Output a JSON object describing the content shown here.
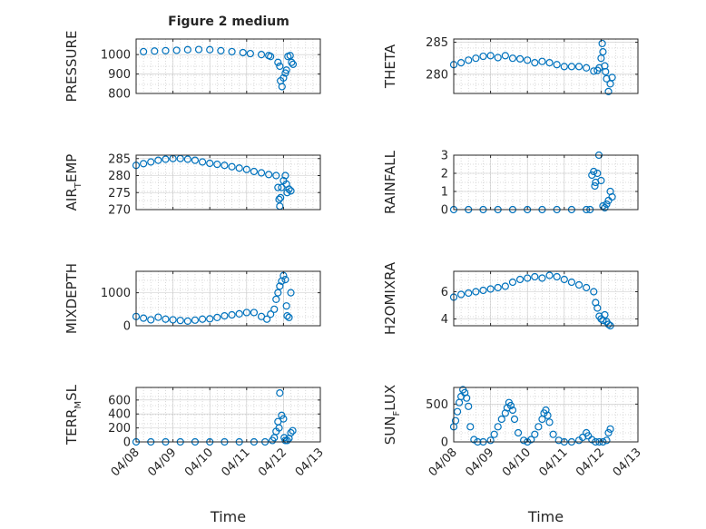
{
  "figure_title": "Figure 2 medium",
  "colors": {
    "marker": "#0072bd",
    "axis": "#262626",
    "grid": "#d0d0d0"
  },
  "x_tick_labels": [
    "04/08",
    "04/09",
    "04/10",
    "04/11",
    "04/12",
    "04/13"
  ],
  "chart_data": [
    {
      "type": "scatter",
      "ylabel": "PRESSURE",
      "ylim": [
        800,
        1080
      ],
      "yticks": [
        800,
        900,
        1000
      ],
      "xlim": [
        "04/08",
        "04/13"
      ],
      "grid": true,
      "x": [
        8.2,
        8.5,
        8.8,
        9.1,
        9.4,
        9.7,
        10.0,
        10.3,
        10.6,
        10.9,
        11.1,
        11.4,
        11.6,
        11.65,
        11.85,
        11.9,
        11.92,
        11.96,
        12.0,
        12.05,
        12.08,
        12.12,
        12.18,
        12.22,
        12.26
      ],
      "y": [
        1015,
        1018,
        1020,
        1022,
        1025,
        1026,
        1025,
        1020,
        1015,
        1010,
        1005,
        1000,
        995,
        990,
        960,
        940,
        865,
        835,
        880,
        905,
        920,
        990,
        995,
        960,
        950
      ]
    },
    {
      "type": "scatter",
      "ylabel": "THETA",
      "ylim": [
        277,
        285.5
      ],
      "yticks": [
        280,
        285
      ],
      "xlim": [
        "04/08",
        "04/13"
      ],
      "grid": true,
      "x": [
        8.0,
        8.2,
        8.4,
        8.6,
        8.8,
        9.0,
        9.2,
        9.4,
        9.6,
        9.8,
        10.0,
        10.2,
        10.4,
        10.6,
        10.8,
        11.0,
        11.2,
        11.4,
        11.6,
        11.8,
        11.9,
        11.95,
        12.0,
        12.03,
        12.05,
        12.1,
        12.12,
        12.15,
        12.2,
        12.25,
        12.3
      ],
      "y": [
        281.5,
        281.8,
        282.2,
        282.5,
        282.8,
        282.9,
        282.6,
        282.9,
        282.5,
        282.4,
        282.2,
        281.8,
        282.0,
        281.8,
        281.5,
        281.2,
        281.2,
        281.2,
        281.0,
        280.5,
        280.6,
        281.0,
        282.5,
        284.8,
        283.5,
        281.3,
        280.4,
        279.3,
        277.3,
        278.5,
        279.5
      ]
    },
    {
      "type": "scatter",
      "ylabel": "AIR_TEMP",
      "ylabel_main": "AIR",
      "ylabel_sub": "T",
      "ylabel_rest": "EMP",
      "ylim": [
        270,
        286
      ],
      "yticks": [
        270,
        275,
        280,
        285
      ],
      "xlim": [
        "04/08",
        "04/13"
      ],
      "grid": true,
      "x": [
        8.0,
        8.2,
        8.4,
        8.6,
        8.8,
        9.0,
        9.2,
        9.4,
        9.6,
        9.8,
        10.0,
        10.2,
        10.4,
        10.6,
        10.8,
        11.0,
        11.2,
        11.4,
        11.6,
        11.8,
        11.85,
        11.88,
        11.9,
        11.92,
        11.95,
        12.0,
        12.05,
        12.08,
        12.1,
        12.15,
        12.2
      ],
      "y": [
        283.0,
        283.5,
        284.0,
        284.5,
        284.8,
        285.0,
        285.0,
        284.8,
        284.5,
        284.0,
        283.6,
        283.3,
        283.0,
        282.6,
        282.2,
        281.8,
        281.2,
        280.8,
        280.3,
        280.0,
        276.5,
        273.0,
        271.0,
        273.5,
        276.5,
        278.5,
        280.0,
        277.5,
        275.0,
        276.0,
        275.5
      ]
    },
    {
      "type": "scatter",
      "ylabel": "RAINFALL",
      "ylim": [
        0,
        3
      ],
      "yticks": [
        0,
        1,
        2,
        3
      ],
      "xlim": [
        "04/08",
        "04/13"
      ],
      "grid": true,
      "x": [
        8.0,
        8.4,
        8.8,
        9.2,
        9.6,
        10.0,
        10.4,
        10.8,
        11.2,
        11.6,
        11.7,
        11.75,
        11.8,
        11.83,
        11.85,
        11.9,
        11.94,
        12.0,
        12.05,
        12.1,
        12.15,
        12.2,
        12.25,
        12.3
      ],
      "y": [
        0,
        0,
        0,
        0,
        0,
        0,
        0,
        0,
        0,
        0,
        0,
        1.9,
        2.1,
        1.3,
        1.5,
        2.0,
        3.0,
        1.6,
        0.2,
        0.1,
        0.3,
        0.5,
        1.0,
        0.7
      ]
    },
    {
      "type": "scatter",
      "ylabel": "MIXDEPTH",
      "ylim": [
        0,
        1650
      ],
      "yticks": [
        0,
        1000
      ],
      "xlim": [
        "04/08",
        "04/13"
      ],
      "grid": true,
      "x": [
        8.0,
        8.2,
        8.4,
        8.6,
        8.8,
        9.0,
        9.2,
        9.4,
        9.6,
        9.8,
        10.0,
        10.2,
        10.4,
        10.6,
        10.8,
        11.0,
        11.2,
        11.4,
        11.55,
        11.65,
        11.75,
        11.8,
        11.85,
        11.9,
        11.95,
        12.0,
        12.05,
        12.08,
        12.1,
        12.15,
        12.2
      ],
      "y": [
        280,
        230,
        180,
        260,
        200,
        180,
        160,
        140,
        170,
        200,
        210,
        250,
        300,
        330,
        360,
        400,
        400,
        280,
        200,
        350,
        500,
        800,
        1000,
        1200,
        1350,
        1520,
        1400,
        600,
        300,
        250,
        1000
      ]
    },
    {
      "type": "scatter",
      "ylabel": "H2OMIXRA",
      "ylim": [
        3.5,
        7.5
      ],
      "yticks": [
        4,
        6
      ],
      "xlim": [
        "04/08",
        "04/13"
      ],
      "grid": true,
      "x": [
        8.0,
        8.2,
        8.4,
        8.6,
        8.8,
        9.0,
        9.2,
        9.4,
        9.6,
        9.8,
        10.0,
        10.2,
        10.4,
        10.6,
        10.8,
        11.0,
        11.2,
        11.4,
        11.6,
        11.8,
        11.85,
        11.9,
        11.95,
        12.0,
        12.05,
        12.1,
        12.15,
        12.2,
        12.25
      ],
      "y": [
        5.6,
        5.8,
        5.9,
        6.0,
        6.1,
        6.2,
        6.3,
        6.4,
        6.7,
        6.9,
        7.0,
        7.1,
        7.0,
        7.2,
        7.1,
        6.9,
        6.7,
        6.5,
        6.3,
        6.0,
        5.2,
        4.8,
        4.2,
        4.0,
        3.9,
        4.3,
        3.8,
        3.6,
        3.5
      ]
    },
    {
      "type": "scatter",
      "ylabel": "TERR_MSL",
      "ylabel_main": "TERR",
      "ylabel_sub": "M",
      "ylabel_rest": "SL",
      "ylim": [
        0,
        780
      ],
      "yticks": [
        0,
        200,
        400,
        600
      ],
      "xlim": [
        "04/08",
        "04/13"
      ],
      "grid": true,
      "x": [
        8.0,
        8.4,
        8.8,
        9.2,
        9.6,
        10.0,
        10.4,
        10.8,
        11.2,
        11.5,
        11.7,
        11.75,
        11.8,
        11.85,
        11.88,
        11.9,
        11.95,
        12.0,
        12.02,
        12.05,
        12.1,
        12.15,
        12.2,
        12.25
      ],
      "y": [
        0,
        0,
        0,
        0,
        0,
        0,
        0,
        0,
        0,
        0,
        20,
        60,
        150,
        290,
        200,
        700,
        380,
        330,
        60,
        20,
        20,
        50,
        130,
        160
      ]
    },
    {
      "type": "scatter",
      "ylabel": "SUN_FLUX",
      "ylabel_main": "SUN",
      "ylabel_sub": "F",
      "ylabel_rest": "LUX",
      "ylim": [
        0,
        720
      ],
      "yticks": [
        0,
        500
      ],
      "xlim": [
        "04/08",
        "04/13"
      ],
      "grid": true,
      "x": [
        8.0,
        8.05,
        8.1,
        8.15,
        8.2,
        8.25,
        8.3,
        8.35,
        8.4,
        8.45,
        8.55,
        8.65,
        8.8,
        9.0,
        9.1,
        9.2,
        9.3,
        9.4,
        9.45,
        9.5,
        9.55,
        9.6,
        9.65,
        9.75,
        9.9,
        10.0,
        10.1,
        10.2,
        10.3,
        10.4,
        10.45,
        10.5,
        10.55,
        10.6,
        10.7,
        10.85,
        11.0,
        11.2,
        11.4,
        11.5,
        11.6,
        11.65,
        11.75,
        11.85,
        11.95,
        12.05,
        12.15,
        12.2,
        12.25
      ],
      "y": [
        200,
        280,
        400,
        520,
        600,
        690,
        650,
        580,
        470,
        200,
        30,
        0,
        0,
        20,
        100,
        200,
        300,
        380,
        450,
        520,
        480,
        420,
        300,
        120,
        20,
        0,
        30,
        100,
        200,
        300,
        380,
        420,
        350,
        260,
        100,
        20,
        0,
        0,
        20,
        60,
        120,
        80,
        30,
        0,
        0,
        0,
        20,
        120,
        170
      ]
    }
  ],
  "xlabel": "Time"
}
